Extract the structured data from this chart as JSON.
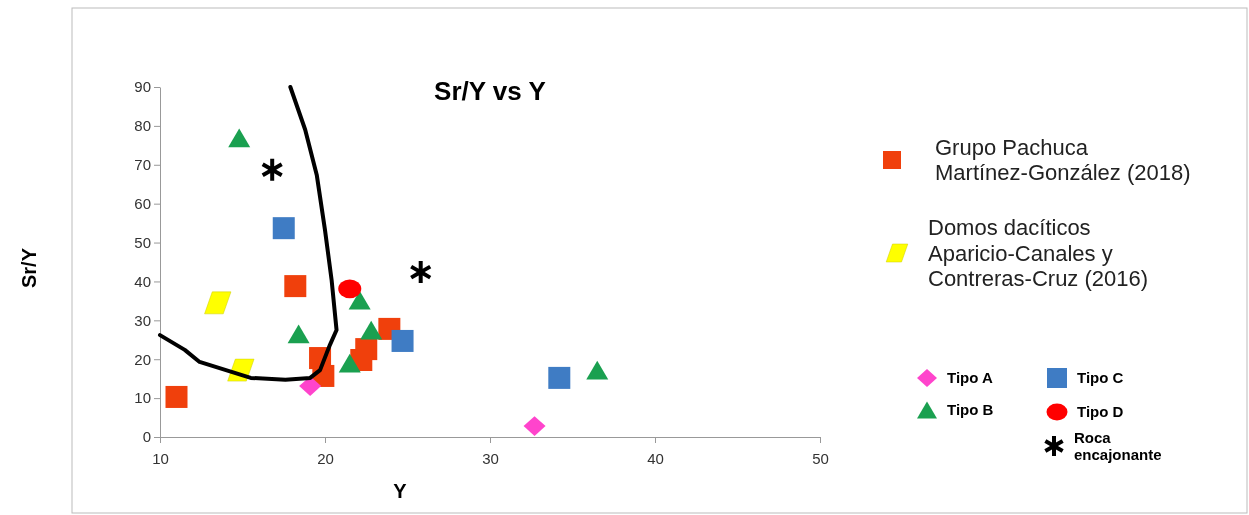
{
  "chart_data": {
    "type": "scatter",
    "title": "Sr/Y vs Y",
    "xlabel": "Y",
    "ylabel": "Sr/Y",
    "xlim": [
      10,
      50
    ],
    "xticks": [
      10,
      20,
      30,
      40,
      50
    ],
    "ylim": [
      0,
      90
    ],
    "yticks": [
      0,
      10,
      20,
      30,
      40,
      50,
      60,
      70,
      80,
      90
    ],
    "grid": false,
    "legend": "right",
    "series": [
      {
        "name": "Grupo Pachuca Martínez-González (2018)",
        "color": "#f0400c",
        "marker": "square",
        "x": [
          11.0,
          18.2,
          19.7,
          19.9,
          22.2,
          22.5,
          23.9
        ],
        "values": [
          10.3,
          38.8,
          20.3,
          15.7,
          19.8,
          22.6,
          27.8
        ]
      },
      {
        "name": "Domos dacíticos Aparicio-Canales y Contreras-Cruz (2016)",
        "color": "#ffff00",
        "x": [
          13.5,
          14.9
        ],
        "values": [
          34.5,
          17.2
        ]
      },
      {
        "name": "Tipo A",
        "color": "#ff44cc",
        "marker": "diamond",
        "x": [
          19.1,
          32.7
        ],
        "values": [
          13.1,
          2.8
        ]
      },
      {
        "name": "Tipo B",
        "color": "#1aa050",
        "marker": "triangle",
        "x": [
          14.8,
          18.4,
          22.1,
          22.8,
          21.5,
          36.5
        ],
        "values": [
          76.9,
          26.5,
          35.2,
          27.5,
          19.0,
          17.2
        ]
      },
      {
        "name": "Tipo C",
        "color": "#3f7cc4",
        "marker": "square",
        "x": [
          17.5,
          24.7,
          34.2
        ],
        "values": [
          53.7,
          24.7,
          15.2
        ]
      },
      {
        "name": "Tipo D",
        "color": "#ff0000",
        "marker": "circle",
        "x": [
          21.5
        ],
        "values": [
          38.1
        ]
      },
      {
        "name": "Roca encajonante",
        "color": "#000000",
        "marker": "cross",
        "x": [
          16.8,
          25.8
        ],
        "values": [
          68.7,
          42.4
        ]
      },
      {
        "type": "line",
        "color": "#000000",
        "marker": "none",
        "line_style": "solid",
        "x": [
          17.9,
          18.8,
          19.5,
          20.0,
          20.4,
          20.7,
          20.3,
          19.7,
          19.1,
          17.6,
          15.5,
          12.4,
          11.5,
          10.0
        ],
        "values": [
          90,
          79,
          67.4,
          53.2,
          40.4,
          27.5,
          23.7,
          17.2,
          15.2,
          14.7,
          15.2,
          19.3,
          22.4,
          26.2
        ]
      }
    ]
  }
}
